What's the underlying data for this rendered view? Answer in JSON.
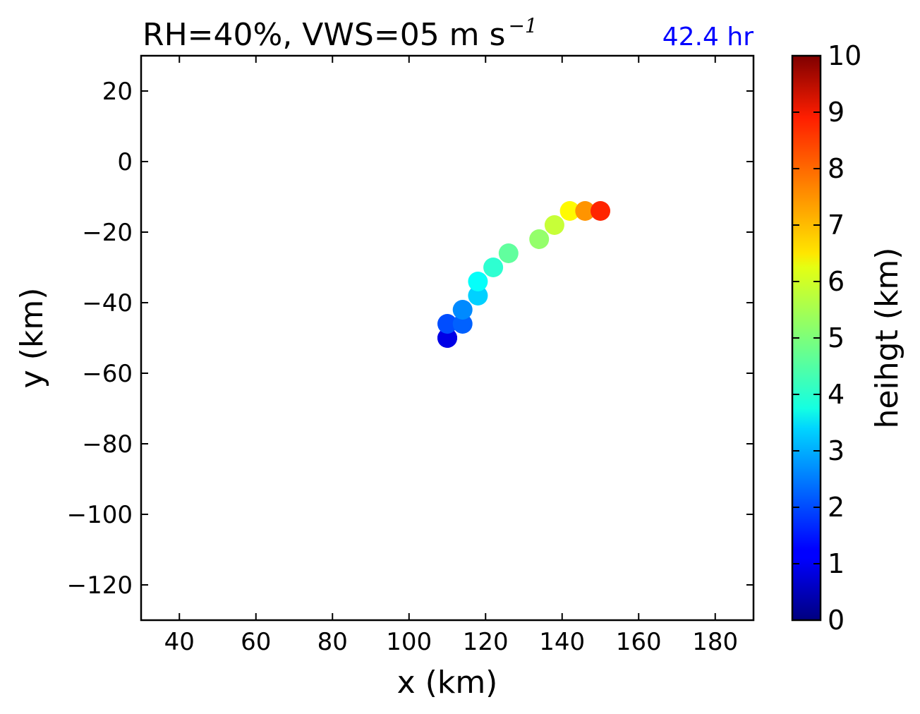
{
  "chart_data": {
    "type": "scatter",
    "title": "RH=40%, VWS=05 m s",
    "title_superscript": "−1",
    "time_label": "42.4 hr",
    "time_label_color": "#0000ff",
    "xlabel": "x (km)",
    "ylabel": "y (km)",
    "xlim": [
      30,
      190
    ],
    "ylim": [
      -130,
      30
    ],
    "xticks": [
      40,
      60,
      80,
      100,
      120,
      140,
      160,
      180
    ],
    "yticks": [
      20,
      0,
      -20,
      -40,
      -60,
      -80,
      -100,
      -120
    ],
    "xtick_labels": [
      "40",
      "60",
      "80",
      "100",
      "120",
      "140",
      "160",
      "180"
    ],
    "ytick_labels": [
      "20",
      "0",
      "−20",
      "−40",
      "−60",
      "−80",
      "−100",
      "−120"
    ],
    "grid": false,
    "colormap": "jet",
    "colorbar": {
      "label": "heihgt (km)",
      "range": [
        0,
        10
      ],
      "ticks": [
        0,
        1,
        2,
        3,
        4,
        5,
        6,
        7,
        8,
        9,
        10
      ],
      "tick_labels": [
        "0",
        "1",
        "2",
        "3",
        "4",
        "5",
        "6",
        "7",
        "8",
        "9",
        "10"
      ]
    },
    "points": [
      {
        "x": 110,
        "y": -50,
        "height": 0.8
      },
      {
        "x": 110,
        "y": -50,
        "height": 1.0
      },
      {
        "x": 110,
        "y": -46,
        "height": 2.0
      },
      {
        "x": 114,
        "y": -46,
        "height": 2.2
      },
      {
        "x": 114,
        "y": -42,
        "height": 2.6
      },
      {
        "x": 118,
        "y": -38,
        "height": 3.3
      },
      {
        "x": 118,
        "y": -34,
        "height": 3.8
      },
      {
        "x": 122,
        "y": -30,
        "height": 4.2
      },
      {
        "x": 126,
        "y": -26,
        "height": 4.7
      },
      {
        "x": 134,
        "y": -22,
        "height": 5.2
      },
      {
        "x": 138,
        "y": -18,
        "height": 5.7
      },
      {
        "x": 142,
        "y": -14,
        "height": 6.3
      },
      {
        "x": 146,
        "y": -14,
        "height": 7.3
      },
      {
        "x": 150,
        "y": -14,
        "height": 8.4
      }
    ]
  }
}
